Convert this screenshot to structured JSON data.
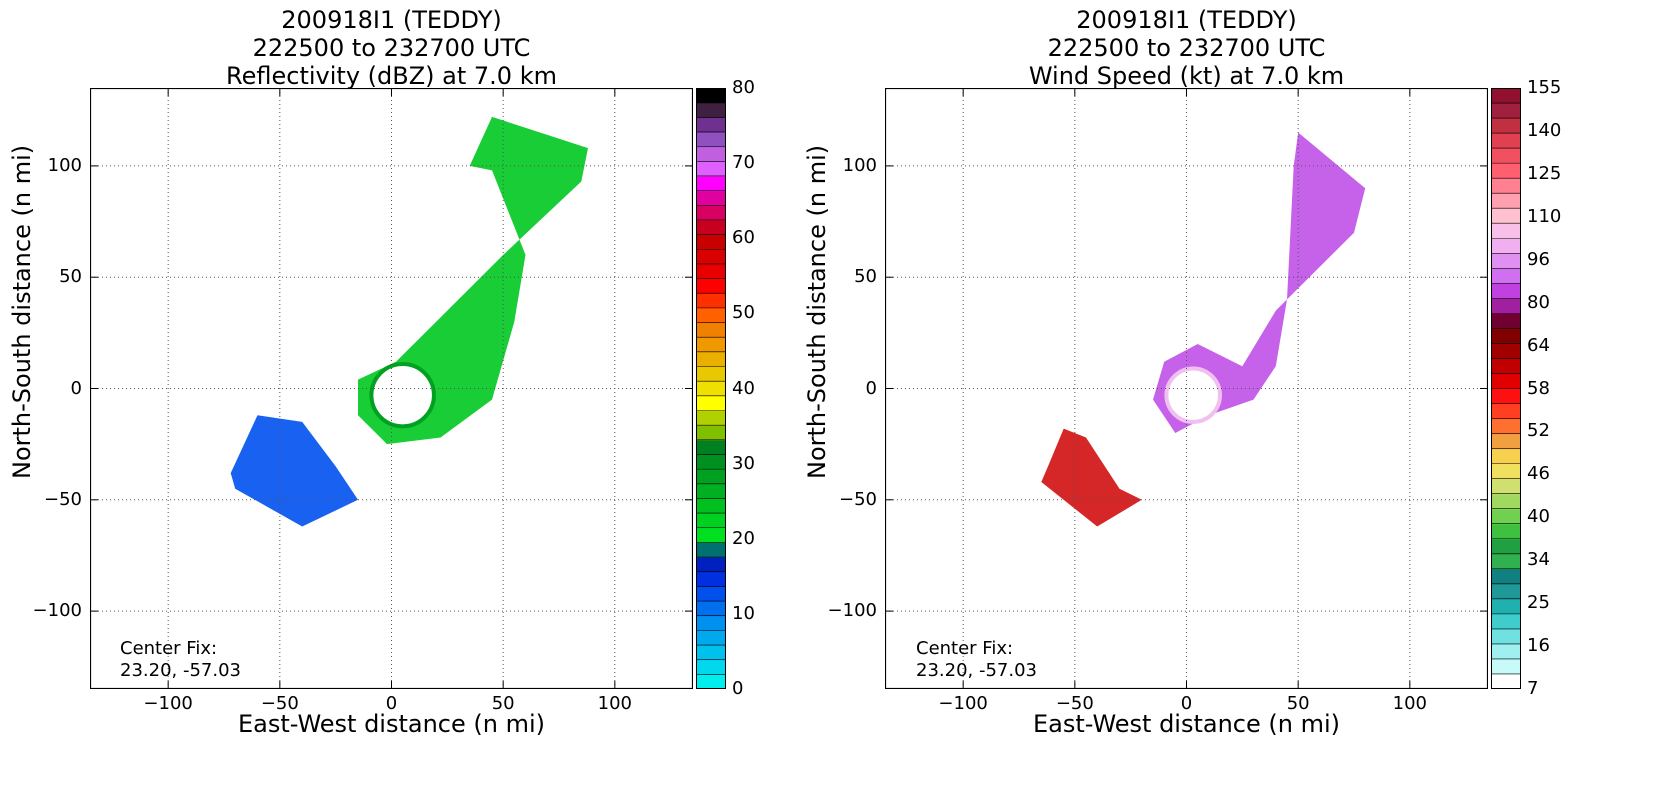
{
  "chart_data": [
    {
      "type": "heatmap",
      "title_lines": [
        "200918I1 (TEDDY)",
        "222500 to 232700 UTC",
        "Reflectivity (dBZ) at 7.0 km"
      ],
      "xlabel": "East-West distance (n mi)",
      "ylabel": "North-South distance (n mi)",
      "xlim": [
        -135,
        135
      ],
      "ylim": [
        -135,
        135
      ],
      "xticks": [
        -100,
        -50,
        0,
        50,
        100
      ],
      "yticks": [
        -100,
        -50,
        0,
        50,
        100
      ],
      "grid": true,
      "center_fix_label": "Center Fix:",
      "center_fix_value": "23.20, -57.03",
      "colorbar": {
        "min": 0,
        "max": 80,
        "tick_labels": [
          "0",
          "10",
          "20",
          "30",
          "40",
          "50",
          "60",
          "70",
          "80"
        ],
        "colors": [
          "#00eeee",
          "#00d8ee",
          "#00c0ee",
          "#00a8ee",
          "#0090ee",
          "#0070ee",
          "#0050ee",
          "#0030e0",
          "#0020c0",
          "#007070",
          "#00e020",
          "#00d020",
          "#00c020",
          "#00b020",
          "#00a020",
          "#009020",
          "#008020",
          "#80c000",
          "#b0d000",
          "#ffff00",
          "#f0e000",
          "#e8c800",
          "#eab000",
          "#f09800",
          "#f08000",
          "#ff6000",
          "#ff3000",
          "#ff0000",
          "#e80000",
          "#d80000",
          "#c80000",
          "#c80020",
          "#d80060",
          "#e000a0",
          "#ff00ff",
          "#e060ff",
          "#c060e0",
          "#9050c0",
          "#703090",
          "#402040",
          "#000000"
        ]
      },
      "regions": [
        {
          "name": "main band",
          "polygon": [
            [
              45,
              122
            ],
            [
              88,
              108
            ],
            [
              85,
              93
            ],
            [
              50,
              60
            ],
            [
              20,
              30
            ],
            [
              2,
              12
            ],
            [
              -15,
              4
            ],
            [
              -15,
              -12
            ],
            [
              -2,
              -25
            ],
            [
              22,
              -22
            ],
            [
              45,
              -5
            ],
            [
              55,
              30
            ],
            [
              60,
              60
            ],
            [
              45,
              98
            ],
            [
              35,
              100
            ]
          ]
        },
        {
          "name": "southwest band",
          "polygon": [
            [
              -60,
              -12
            ],
            [
              -40,
              -15
            ],
            [
              -25,
              -35
            ],
            [
              -15,
              -50
            ],
            [
              -40,
              -62
            ],
            [
              -70,
              -45
            ],
            [
              -72,
              -38
            ]
          ]
        }
      ],
      "eye": {
        "x": 5,
        "y": -3,
        "radius": 14
      }
    },
    {
      "type": "heatmap",
      "title_lines": [
        "200918I1 (TEDDY)",
        "222500 to 232700 UTC",
        "Wind Speed (kt) at 7.0 km"
      ],
      "xlabel": "East-West distance (n mi)",
      "ylabel": "North-South distance (n mi)",
      "xlim": [
        -135,
        135
      ],
      "ylim": [
        -135,
        135
      ],
      "xticks": [
        -100,
        -50,
        0,
        50,
        100
      ],
      "yticks": [
        -100,
        -50,
        0,
        50,
        100
      ],
      "grid": true,
      "center_fix_label": "Center Fix:",
      "center_fix_value": "23.20, -57.03",
      "colorbar": {
        "min": 7,
        "max": 162,
        "tick_labels": [
          "7",
          "16",
          "25",
          "34",
          "40",
          "46",
          "52",
          "58",
          "64",
          "80",
          "96",
          "110",
          "125",
          "140",
          "155"
        ],
        "colors": [
          "#ffffff",
          "#c8fafa",
          "#a0f0f0",
          "#70e0e0",
          "#40cccc",
          "#20b0b0",
          "#209898",
          "#108080",
          "#30b050",
          "#20a040",
          "#40c040",
          "#70d050",
          "#a0d860",
          "#d0e070",
          "#f0e060",
          "#f8d050",
          "#f0a040",
          "#ff7030",
          "#ff4020",
          "#ff1010",
          "#e00000",
          "#c00000",
          "#a00000",
          "#800000",
          "#700030",
          "#a020a0",
          "#c040e0",
          "#d070f0",
          "#e090f0",
          "#f0b0f0",
          "#f8c0e8",
          "#ffc0d0",
          "#ffa0b0",
          "#ff8090",
          "#ff6070",
          "#f05060",
          "#e04050",
          "#c03040",
          "#a02040",
          "#901030"
        ]
      },
      "regions": [
        {
          "name": "main band",
          "polygon": [
            [
              50,
              115
            ],
            [
              80,
              90
            ],
            [
              75,
              70
            ],
            [
              40,
              35
            ],
            [
              25,
              10
            ],
            [
              5,
              20
            ],
            [
              -10,
              12
            ],
            [
              -15,
              -5
            ],
            [
              -5,
              -20
            ],
            [
              10,
              -12
            ],
            [
              30,
              -5
            ],
            [
              40,
              10
            ],
            [
              45,
              40
            ],
            [
              48,
              100
            ]
          ]
        },
        {
          "name": "southwest band",
          "polygon": [
            [
              -55,
              -18
            ],
            [
              -45,
              -22
            ],
            [
              -30,
              -45
            ],
            [
              -20,
              -50
            ],
            [
              -40,
              -62
            ],
            [
              -65,
              -42
            ],
            [
              -62,
              -35
            ]
          ]
        }
      ],
      "eye": {
        "x": 3,
        "y": -3,
        "radius": 12
      }
    }
  ]
}
